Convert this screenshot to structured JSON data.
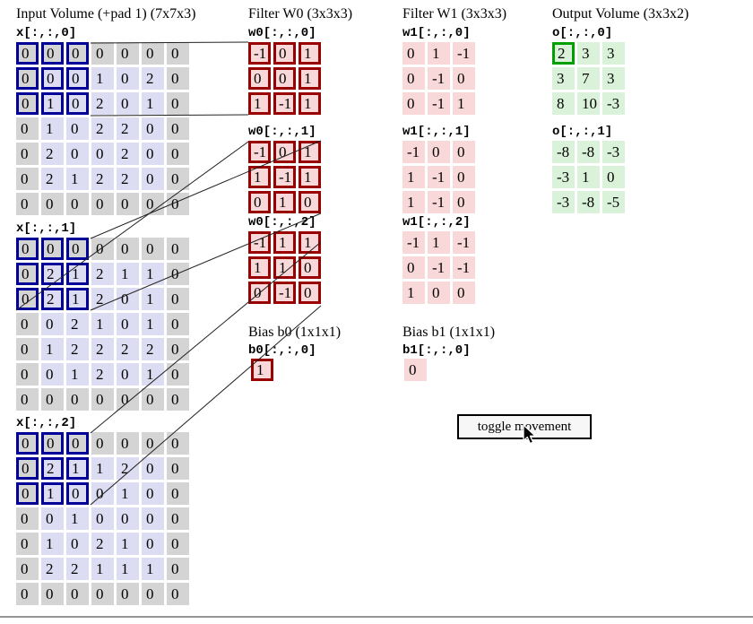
{
  "titles": {
    "input": "Input Volume (+pad 1) (7x7x3)",
    "filter_w0": "Filter W0 (3x3x3)",
    "filter_w1": "Filter W1 (3x3x3)",
    "output": "Output Volume (3x3x2)",
    "bias_b0": "Bias b0 (1x1x1)",
    "bias_b1": "Bias b1 (1x1x1)"
  },
  "input_volume": {
    "slices": [
      {
        "label": "x[:,:,0]",
        "rows": [
          [
            0,
            0,
            0,
            0,
            0,
            0,
            0
          ],
          [
            0,
            0,
            0,
            1,
            0,
            2,
            0
          ],
          [
            0,
            1,
            0,
            2,
            0,
            1,
            0
          ],
          [
            0,
            1,
            0,
            2,
            2,
            0,
            0
          ],
          [
            0,
            2,
            0,
            0,
            2,
            0,
            0
          ],
          [
            0,
            2,
            1,
            2,
            2,
            0,
            0
          ],
          [
            0,
            0,
            0,
            0,
            0,
            0,
            0
          ]
        ]
      },
      {
        "label": "x[:,:,1]",
        "rows": [
          [
            0,
            0,
            0,
            0,
            0,
            0,
            0
          ],
          [
            0,
            2,
            1,
            2,
            1,
            1,
            0
          ],
          [
            0,
            2,
            1,
            2,
            0,
            1,
            0
          ],
          [
            0,
            0,
            2,
            1,
            0,
            1,
            0
          ],
          [
            0,
            1,
            2,
            2,
            2,
            2,
            0
          ],
          [
            0,
            0,
            1,
            2,
            0,
            1,
            0
          ],
          [
            0,
            0,
            0,
            0,
            0,
            0,
            0
          ]
        ]
      },
      {
        "label": "x[:,:,2]",
        "rows": [
          [
            0,
            0,
            0,
            0,
            0,
            0,
            0
          ],
          [
            0,
            2,
            1,
            1,
            2,
            0,
            0
          ],
          [
            0,
            1,
            0,
            0,
            1,
            0,
            0
          ],
          [
            0,
            0,
            1,
            0,
            0,
            0,
            0
          ],
          [
            0,
            1,
            0,
            2,
            1,
            0,
            0
          ],
          [
            0,
            2,
            2,
            1,
            1,
            1,
            0
          ],
          [
            0,
            0,
            0,
            0,
            0,
            0,
            0
          ]
        ]
      }
    ],
    "highlight": {
      "row_start": 0,
      "row_end": 2,
      "col_start": 0,
      "col_end": 2
    }
  },
  "filter_w0": {
    "slices": [
      {
        "label": "w0[:,:,0]",
        "rows": [
          [
            -1,
            0,
            1
          ],
          [
            0,
            0,
            1
          ],
          [
            1,
            -1,
            1
          ]
        ]
      },
      {
        "label": "w0[:,:,1]",
        "rows": [
          [
            -1,
            0,
            1
          ],
          [
            1,
            -1,
            1
          ],
          [
            0,
            1,
            0
          ]
        ]
      },
      {
        "label": "w0[:,:,2]",
        "rows": [
          [
            -1,
            1,
            1
          ],
          [
            1,
            1,
            0
          ],
          [
            0,
            -1,
            0
          ]
        ]
      }
    ]
  },
  "filter_w1": {
    "slices": [
      {
        "label": "w1[:,:,0]",
        "rows": [
          [
            0,
            1,
            -1
          ],
          [
            0,
            -1,
            0
          ],
          [
            0,
            -1,
            1
          ]
        ]
      },
      {
        "label": "w1[:,:,1]",
        "rows": [
          [
            -1,
            0,
            0
          ],
          [
            1,
            -1,
            0
          ],
          [
            1,
            -1,
            0
          ]
        ]
      },
      {
        "label": "w1[:,:,2]",
        "rows": [
          [
            -1,
            1,
            -1
          ],
          [
            0,
            -1,
            -1
          ],
          [
            1,
            0,
            0
          ]
        ]
      }
    ]
  },
  "bias_b0": {
    "label": "b0[:,:,0]",
    "value": 1
  },
  "bias_b1": {
    "label": "b1[:,:,0]",
    "value": 0
  },
  "output_volume": {
    "slices": [
      {
        "label": "o[:,:,0]",
        "rows": [
          [
            2,
            3,
            3
          ],
          [
            3,
            7,
            3
          ],
          [
            8,
            10,
            -3
          ]
        ]
      },
      {
        "label": "o[:,:,1]",
        "rows": [
          [
            -8,
            -8,
            -3
          ],
          [
            -3,
            1,
            0
          ],
          [
            -3,
            -8,
            -5
          ]
        ]
      }
    ],
    "highlight_cell": {
      "slice": 0,
      "row": 0,
      "col": 0
    }
  },
  "button": {
    "label": "toggle movement"
  },
  "colors": {
    "highlight_blue": "#000099",
    "filter_red": "#990000",
    "highlight_green": "#00a000",
    "cell_gray": "#d4d4d4",
    "cell_lavender": "#dcdcf2",
    "cell_pink": "#f8d8d8",
    "cell_green": "#d9f2d9"
  }
}
